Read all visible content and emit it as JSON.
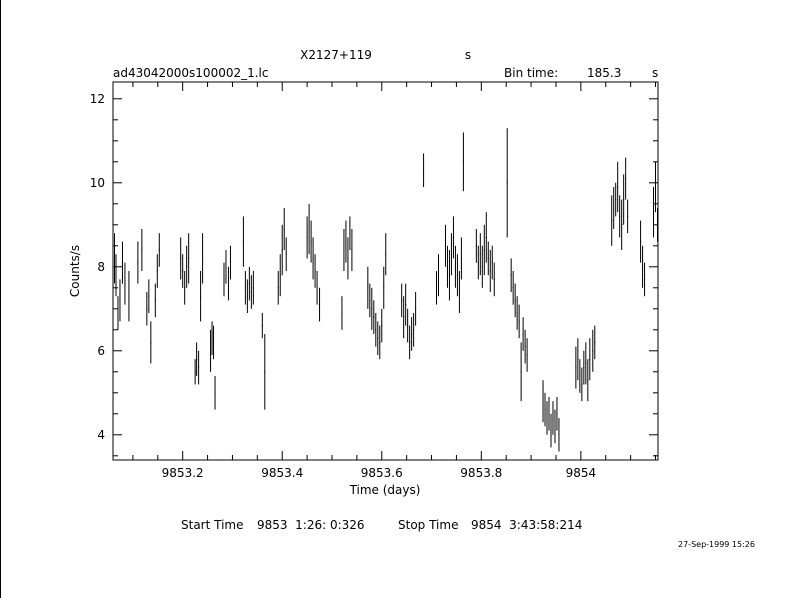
{
  "header": {
    "source": "X2127+119",
    "source_unit": "s",
    "file": "ad43042000s100002_1.lc",
    "bin_label": "Bin time:",
    "bin_value": "185.3",
    "bin_unit": "s"
  },
  "footer": {
    "start_label": "Start Time",
    "start_value": "9853  1:26: 0:326",
    "stop_label": "Stop Time",
    "stop_value": "9854  3:43:58:214",
    "stamp": "27-Sep-1999 15:26"
  },
  "chart_data": {
    "type": "scatter",
    "xlabel": "Time (days)",
    "ylabel": "Counts/s",
    "xlim": [
      9853.06,
      9854.155
    ],
    "ylim": [
      3.4,
      12.4
    ],
    "x_ticks": [
      9853.2,
      9853.4,
      9853.6,
      9853.8,
      9854
    ],
    "x_tick_labels": [
      "9853.2",
      "9853.4",
      "9853.6",
      "9853.8",
      "9854"
    ],
    "y_ticks": [
      4,
      6,
      8,
      10,
      12
    ],
    "y_tick_labels": [
      "4",
      "6",
      "8",
      "10",
      "12"
    ],
    "grid": false,
    "series": [
      {
        "points": [
          [
            9853.063,
            8.2,
            0.6
          ],
          [
            9853.066,
            7.8,
            0.5
          ],
          [
            9853.07,
            6.9,
            0.4
          ],
          [
            9853.074,
            7.2,
            0.5
          ],
          [
            9853.079,
            8.1,
            0.5
          ],
          [
            9853.084,
            7.6,
            0.5
          ],
          [
            9853.092,
            7.3,
            0.6
          ],
          [
            9853.11,
            8.1,
            0.5
          ],
          [
            9853.118,
            8.4,
            0.5
          ],
          [
            9853.128,
            7.0,
            0.4
          ],
          [
            9853.132,
            7.3,
            0.4
          ],
          [
            9853.136,
            6.2,
            0.5
          ],
          [
            9853.145,
            7.2,
            0.4
          ],
          [
            9853.149,
            7.9,
            0.4
          ],
          [
            9853.153,
            8.4,
            0.4
          ],
          [
            9853.196,
            8.2,
            0.5
          ],
          [
            9853.2,
            7.9,
            0.4
          ],
          [
            9853.204,
            7.5,
            0.4
          ],
          [
            9853.208,
            8.0,
            0.5
          ],
          [
            9853.212,
            8.2,
            0.6
          ],
          [
            9853.225,
            5.5,
            0.3
          ],
          [
            9853.228,
            5.8,
            0.4
          ],
          [
            9853.232,
            5.6,
            0.4
          ],
          [
            9853.236,
            7.3,
            0.6
          ],
          [
            9853.24,
            8.2,
            0.6
          ],
          [
            9853.256,
            6.0,
            0.5
          ],
          [
            9853.259,
            6.3,
            0.4
          ],
          [
            9853.262,
            6.2,
            0.4
          ],
          [
            9853.265,
            5.0,
            0.4
          ],
          [
            9853.283,
            7.7,
            0.4
          ],
          [
            9853.287,
            8.0,
            0.4
          ],
          [
            9853.292,
            7.6,
            0.4
          ],
          [
            9853.296,
            8.1,
            0.4
          ],
          [
            9853.322,
            8.6,
            0.6
          ],
          [
            9853.326,
            7.5,
            0.4
          ],
          [
            9853.33,
            7.3,
            0.4
          ],
          [
            9853.334,
            7.6,
            0.4
          ],
          [
            9853.338,
            7.4,
            0.4
          ],
          [
            9853.342,
            7.5,
            0.4
          ],
          [
            9853.36,
            6.6,
            0.3
          ],
          [
            9853.365,
            5.5,
            0.9
          ],
          [
            9853.392,
            7.5,
            0.4
          ],
          [
            9853.396,
            7.8,
            0.5
          ],
          [
            9853.4,
            8.4,
            0.6
          ],
          [
            9853.404,
            8.9,
            0.5
          ],
          [
            9853.408,
            8.3,
            0.4
          ],
          [
            9853.45,
            8.7,
            0.5
          ],
          [
            9853.454,
            8.9,
            0.6
          ],
          [
            9853.458,
            8.6,
            0.5
          ],
          [
            9853.462,
            8.2,
            0.5
          ],
          [
            9853.466,
            7.9,
            0.4
          ],
          [
            9853.47,
            7.5,
            0.4
          ],
          [
            9853.475,
            7.1,
            0.4
          ],
          [
            9853.52,
            6.9,
            0.4
          ],
          [
            9853.524,
            8.4,
            0.5
          ],
          [
            9853.528,
            8.6,
            0.5
          ],
          [
            9853.532,
            8.2,
            0.5
          ],
          [
            9853.536,
            8.8,
            0.4
          ],
          [
            9853.54,
            8.4,
            0.5
          ],
          [
            9853.572,
            7.5,
            0.5
          ],
          [
            9853.576,
            7.2,
            0.4
          ],
          [
            9853.58,
            7.0,
            0.5
          ],
          [
            9853.584,
            6.8,
            0.4
          ],
          [
            9853.588,
            6.5,
            0.4
          ],
          [
            9853.592,
            6.3,
            0.4
          ],
          [
            9853.596,
            6.2,
            0.4
          ],
          [
            9853.6,
            6.6,
            0.4
          ],
          [
            9853.604,
            7.5,
            0.5
          ],
          [
            9853.608,
            8.3,
            0.5
          ],
          [
            9853.64,
            7.2,
            0.4
          ],
          [
            9853.644,
            6.8,
            0.5
          ],
          [
            9853.648,
            7.1,
            0.5
          ],
          [
            9853.652,
            6.6,
            0.4
          ],
          [
            9853.656,
            6.2,
            0.4
          ],
          [
            9853.66,
            6.4,
            0.4
          ],
          [
            9853.664,
            6.5,
            0.4
          ],
          [
            9853.668,
            7.0,
            0.4
          ],
          [
            9853.684,
            10.3,
            0.4
          ],
          [
            9853.71,
            7.5,
            0.4
          ],
          [
            9853.714,
            7.8,
            0.5
          ],
          [
            9853.728,
            8.5,
            0.5
          ],
          [
            9853.732,
            8.0,
            0.5
          ],
          [
            9853.736,
            7.8,
            0.6
          ],
          [
            9853.74,
            8.3,
            0.5
          ],
          [
            9853.744,
            8.7,
            0.5
          ],
          [
            9853.748,
            8.0,
            0.5
          ],
          [
            9853.752,
            7.8,
            0.5
          ],
          [
            9853.756,
            7.4,
            0.5
          ],
          [
            9853.76,
            8.2,
            0.5
          ],
          [
            9853.764,
            10.5,
            0.7
          ],
          [
            9853.79,
            8.5,
            0.4
          ],
          [
            9853.794,
            8.1,
            0.4
          ],
          [
            9853.798,
            8.3,
            0.5
          ],
          [
            9853.802,
            8.0,
            0.5
          ],
          [
            9853.806,
            8.4,
            0.6
          ],
          [
            9853.81,
            8.7,
            0.6
          ],
          [
            9853.814,
            8.2,
            0.4
          ],
          [
            9853.818,
            7.9,
            0.5
          ],
          [
            9853.822,
            8.1,
            0.4
          ],
          [
            9853.826,
            7.7,
            0.4
          ],
          [
            9853.852,
            10.0,
            1.3
          ],
          [
            9853.86,
            7.8,
            0.4
          ],
          [
            9853.864,
            7.5,
            0.4
          ],
          [
            9853.868,
            7.2,
            0.4
          ],
          [
            9853.872,
            6.9,
            0.4
          ],
          [
            9853.876,
            6.7,
            0.4
          ],
          [
            9853.88,
            5.5,
            0.7
          ],
          [
            9853.884,
            6.4,
            0.4
          ],
          [
            9853.888,
            6.1,
            0.4
          ],
          [
            9853.892,
            5.9,
            0.4
          ],
          [
            9853.924,
            4.8,
            0.5
          ],
          [
            9853.928,
            4.6,
            0.4
          ],
          [
            9853.932,
            4.4,
            0.4
          ],
          [
            9853.936,
            4.5,
            0.4
          ],
          [
            9853.94,
            4.1,
            0.4
          ],
          [
            9853.944,
            4.4,
            0.4
          ],
          [
            9853.948,
            4.2,
            0.4
          ],
          [
            9853.952,
            4.5,
            0.4
          ],
          [
            9853.956,
            4.0,
            0.4
          ],
          [
            9853.99,
            5.6,
            0.5
          ],
          [
            9853.994,
            5.8,
            0.5
          ],
          [
            9853.998,
            5.4,
            0.4
          ],
          [
            9854.002,
            5.2,
            0.4
          ],
          [
            9854.006,
            5.6,
            0.4
          ],
          [
            9854.01,
            5.7,
            0.5
          ],
          [
            9854.014,
            5.3,
            0.5
          ],
          [
            9854.018,
            5.8,
            0.5
          ],
          [
            9854.024,
            6.0,
            0.5
          ],
          [
            9854.028,
            6.2,
            0.4
          ],
          [
            9854.062,
            9.1,
            0.6
          ],
          [
            9854.066,
            9.4,
            0.5
          ],
          [
            9854.07,
            9.6,
            0.4
          ],
          [
            9854.074,
            9.9,
            0.6
          ],
          [
            9854.078,
            9.2,
            0.5
          ],
          [
            9854.082,
            9.0,
            0.6
          ],
          [
            9854.086,
            9.6,
            0.6
          ],
          [
            9854.09,
            10.1,
            0.5
          ],
          [
            9854.094,
            9.2,
            0.4
          ],
          [
            9854.12,
            8.6,
            0.5
          ],
          [
            9854.124,
            8.0,
            0.5
          ],
          [
            9854.128,
            7.7,
            0.4
          ],
          [
            9854.146,
            9.3,
            0.6
          ],
          [
            9854.15,
            9.9,
            0.6
          ],
          [
            9854.154,
            9.0,
            0.4
          ]
        ]
      }
    ]
  }
}
